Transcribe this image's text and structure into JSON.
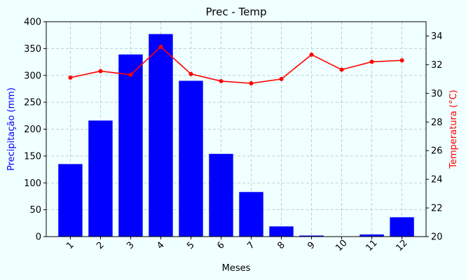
{
  "chart_data": {
    "type": "bar",
    "title": "Prec - Temp",
    "xlabel": "Meses",
    "ylabel": "Precipitação (mm)",
    "y2label": "Temperatura (°C)",
    "categories": [
      "1",
      "2",
      "3",
      "4",
      "5",
      "6",
      "7",
      "8",
      "9",
      "10",
      "11",
      "12"
    ],
    "series": [
      {
        "name": "",
        "type": "bar",
        "axis": "left",
        "color": "#0000ff",
        "values": [
          135,
          216,
          339,
          377,
          290,
          154,
          83,
          19,
          2,
          0,
          4,
          36
        ]
      },
      {
        "name": "",
        "type": "line",
        "axis": "right",
        "color": "#ff0000",
        "values": [
          31.1,
          31.55,
          31.3,
          33.25,
          31.35,
          30.85,
          30.7,
          31.0,
          32.7,
          31.65,
          32.2,
          32.3
        ]
      }
    ],
    "ylim": [
      0,
      400
    ],
    "yticks": [
      0,
      50,
      100,
      150,
      200,
      250,
      300,
      350,
      400
    ],
    "y2lim": [
      20,
      35
    ],
    "y2ticks": [
      20,
      22,
      24,
      26,
      28,
      30,
      32,
      34
    ],
    "grid": true,
    "xtick_rotation": 45,
    "colors": {
      "background": "#f0ffff",
      "bars": "#0000ff",
      "line": "#ff0000",
      "ylabel": "#0000ff",
      "y2label": "#ff0000",
      "grid": "#b0c4c4"
    }
  }
}
